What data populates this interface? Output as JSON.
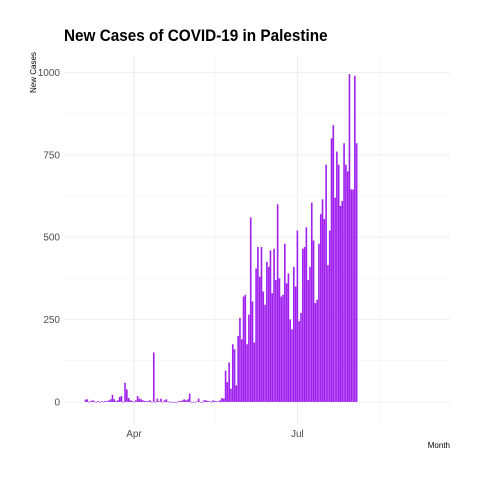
{
  "chart_data": {
    "type": "bar",
    "title": "New Cases of COVID-19 in Palestine",
    "xlabel": "Month",
    "ylabel": "New Cases",
    "x_start": "2020-03-05",
    "x_tick_labels": [
      {
        "date": "2020-04-01",
        "label": "Apr"
      },
      {
        "date": "2020-07-01",
        "label": "Jul"
      }
    ],
    "y_ticks": [
      0,
      250,
      500,
      750,
      1000
    ],
    "ylim": [
      -70,
      1050
    ],
    "xlim": [
      "2020-02-22",
      "2020-09-24"
    ],
    "grid": true,
    "bar_color": "#a020f0",
    "values": [
      7,
      8,
      0,
      3,
      5,
      2,
      0,
      3,
      0,
      2,
      1,
      3,
      2,
      5,
      8,
      22,
      8,
      3,
      5,
      15,
      18,
      0,
      58,
      38,
      12,
      5,
      3,
      0,
      5,
      18,
      10,
      8,
      5,
      3,
      2,
      3,
      5,
      0,
      150,
      0,
      10,
      2,
      10,
      0,
      5,
      8,
      2,
      0,
      0,
      0,
      0,
      0,
      3,
      2,
      5,
      8,
      5,
      8,
      25,
      0,
      0,
      0,
      2,
      10,
      0,
      0,
      5,
      5,
      3,
      2,
      0,
      5,
      3,
      2,
      2,
      5,
      12,
      10,
      95,
      60,
      120,
      40,
      175,
      160,
      50,
      200,
      255,
      190,
      320,
      325,
      175,
      265,
      560,
      305,
      180,
      405,
      470,
      380,
      470,
      335,
      295,
      425,
      410,
      460,
      330,
      465,
      370,
      600,
      375,
      320,
      325,
      480,
      360,
      390,
      250,
      220,
      410,
      350,
      520,
      245,
      270,
      465,
      470,
      530,
      370,
      410,
      605,
      490,
      300,
      310,
      480,
      570,
      615,
      555,
      720,
      415,
      520,
      800,
      840,
      620,
      760,
      720,
      595,
      610,
      785,
      720,
      700,
      995,
      645,
      645,
      990,
      785
    ]
  }
}
